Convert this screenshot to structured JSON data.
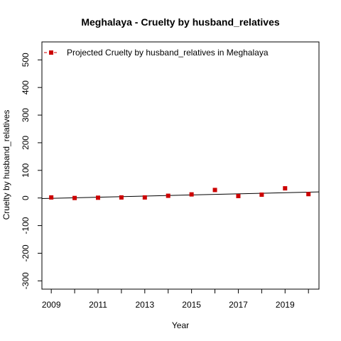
{
  "chart_data": {
    "type": "scatter",
    "title": "Meghalaya  -  Cruelty by husband_relatives",
    "xlabel": "Year",
    "ylabel": "Cruelty by husband_relatives",
    "xlim": [
      2008.6,
      2020.45
    ],
    "ylim": [
      -330,
      565
    ],
    "x_ticks": [
      2009,
      2010,
      2011,
      2012,
      2013,
      2014,
      2015,
      2016,
      2017,
      2018,
      2019,
      2020
    ],
    "x_tick_labels": [
      2009,
      2011,
      2013,
      2015,
      2017,
      2019
    ],
    "y_ticks": [
      -300,
      -200,
      -100,
      0,
      100,
      200,
      300,
      400,
      500
    ],
    "legend": {
      "placement": "top-left",
      "entries": [
        "Projected  Cruelty by husband_relatives  in  Meghalaya"
      ]
    },
    "colors": {
      "points": "#cc0000",
      "trend": "#000000"
    },
    "series": [
      {
        "name": "Projected  Cruelty by husband_relatives  in  Meghalaya",
        "x": [
          2009,
          2010,
          2011,
          2012,
          2013,
          2014,
          2015,
          2016,
          2017,
          2018,
          2019,
          2020
        ],
        "y": [
          2,
          0,
          1,
          2,
          2,
          8,
          13,
          29,
          7,
          12,
          35,
          14
        ]
      }
    ],
    "trend_line": {
      "x": [
        2008.6,
        2020.45
      ],
      "y": [
        -2,
        22
      ]
    }
  }
}
